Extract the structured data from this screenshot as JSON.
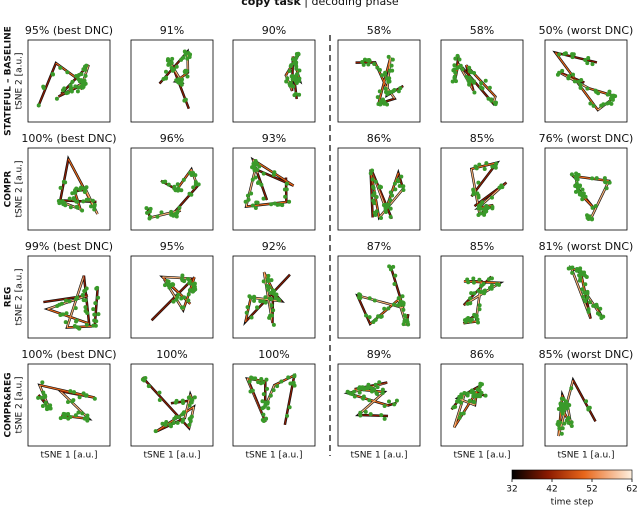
{
  "title": {
    "bold": "copy task",
    "rest": " | decoding phase"
  },
  "rows": [
    {
      "label": "STATEFUL – BASELINE",
      "ylabel": "tSNE 2 [a.u.]",
      "panels": [
        "95% (best DNC)",
        "91%",
        "90%",
        "58%",
        "58%",
        "50% (worst DNC)"
      ]
    },
    {
      "label": "COMPR",
      "ylabel": "tSNE 2 [a.u.]",
      "panels": [
        "100% (best DNC)",
        "96%",
        "93%",
        "86%",
        "85%",
        "76% (worst DNC)"
      ]
    },
    {
      "label": "REG",
      "ylabel": "tSNE 2 [a.u.]",
      "panels": [
        "99% (best DNC)",
        "95%",
        "92%",
        "87%",
        "85%",
        "81% (worst DNC)"
      ]
    },
    {
      "label": "COMPR&REG",
      "ylabel": "tSNE 2 [a.u.]",
      "panels": [
        "100% (best DNC)",
        "100%",
        "100%",
        "89%",
        "86%",
        "85% (worst DNC)"
      ]
    }
  ],
  "xlabel": "tSNE 1 [a.u.]",
  "colorbar": {
    "ticks": [
      32,
      42,
      52,
      62
    ],
    "label": "time step"
  }
}
